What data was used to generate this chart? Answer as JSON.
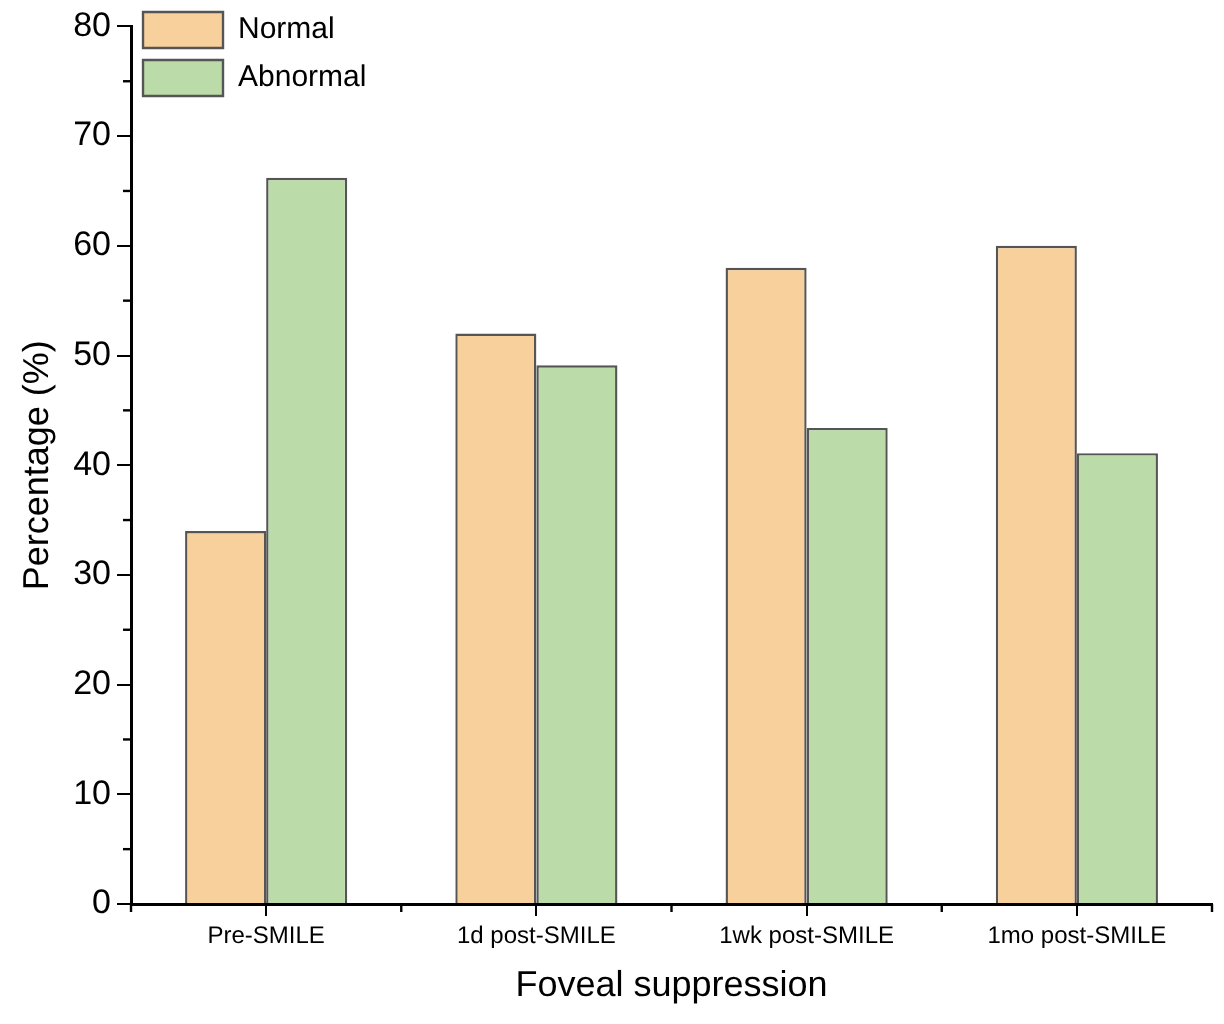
{
  "chart_data": {
    "type": "bar",
    "xlabel": "Foveal suppression",
    "ylabel": "Percentage (%)",
    "categories": [
      "Pre-SMILE",
      "1d post-SMILE",
      "1wk post-SMILE",
      "1mo post-SMILE"
    ],
    "series": [
      {
        "name": "Normal",
        "color": "#f8d09b",
        "values": [
          34,
          52,
          58,
          60
        ]
      },
      {
        "name": "Abnormal",
        "color": "#bbdba8",
        "values": [
          66.2,
          49.1,
          43.4,
          41.1
        ]
      }
    ],
    "ylim": [
      0,
      80
    ],
    "yticks": [
      0,
      10,
      20,
      30,
      40,
      50,
      60,
      70,
      80
    ],
    "grid": false,
    "legend": "top left"
  }
}
